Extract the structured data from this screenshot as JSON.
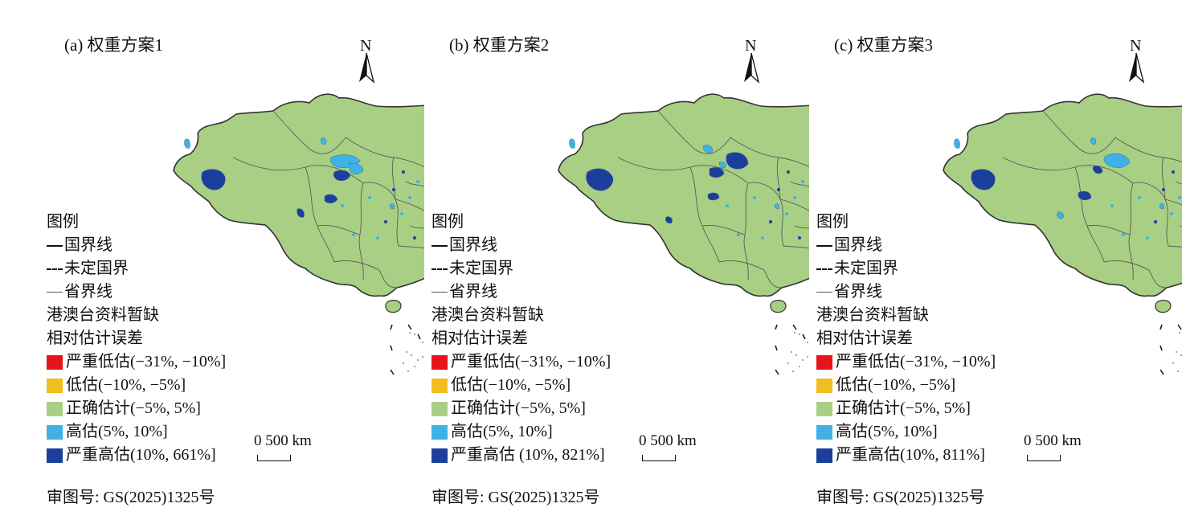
{
  "colors": {
    "severe_under": "#e8141c",
    "under": "#f2bd1e",
    "correct": "#a9cf84",
    "over": "#3fb1e5",
    "severe_over": "#1d3f9c",
    "island_gray": "#9a9a9a",
    "border": "#333333"
  },
  "legend_common": {
    "title": "图例",
    "national_border": "国界线",
    "undetermined_border": "未定国界",
    "provincial_border": "省界线",
    "missing_data": "港澳台资料暂缺",
    "error_title": "相对估计误差",
    "severe_under": "严重低估(−31%, −10%]",
    "under": "低估(−10%, −5%]",
    "correct": "正确估计(−5%, 5%]",
    "over": "高估(5%, 10%]"
  },
  "north_label": "N",
  "scale_label": "0  500 km",
  "approval": "审图号: GS(2025)1325号",
  "panels": [
    {
      "title": "(a) 权重方案1",
      "severe_over": "严重高估(10%, 661%]"
    },
    {
      "title": "(b) 权重方案2",
      "severe_over": "严重高估 (10%, 821%]"
    },
    {
      "title": "(c) 权重方案3",
      "severe_over": "严重高估(10%, 811%]"
    }
  ]
}
